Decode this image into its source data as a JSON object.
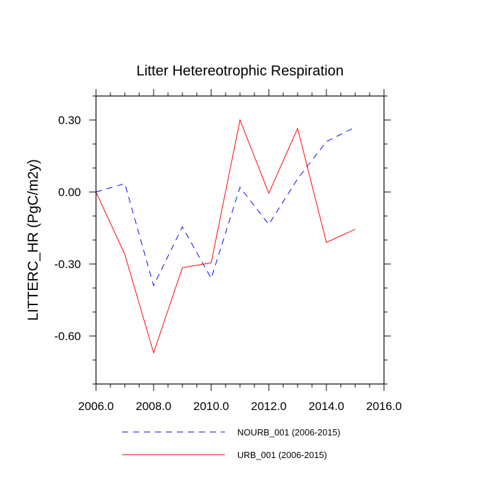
{
  "chart_data": {
    "type": "line",
    "title": "Litter Hetereotrophic Respiration",
    "xlabel": "",
    "ylabel": "LITTERC_HR  (PgC/m2y)",
    "xlim": [
      2006,
      2016
    ],
    "ylim": [
      -0.8,
      0.4
    ],
    "x_ticks": [
      2006,
      2008,
      2010,
      2012,
      2014,
      2016
    ],
    "x_tick_labels": [
      "2006.0",
      "2008.0",
      "2010.0",
      "2012.0",
      "2014.0",
      "2016.0"
    ],
    "y_ticks": [
      0.3,
      0.0,
      -0.3,
      -0.6
    ],
    "y_tick_labels": [
      "0.30",
      "0.00",
      "-0.30",
      "-0.60"
    ],
    "grid": false,
    "legend_position": "bottom",
    "x": [
      2006,
      2007,
      2008,
      2009,
      2010,
      2011,
      2012,
      2013,
      2014,
      2015
    ],
    "series": [
      {
        "name": "NOURB_001 (2006-2015)",
        "color": "#0000ff",
        "style": "dashed",
        "values": [
          0.0,
          0.035,
          -0.39,
          -0.145,
          -0.36,
          0.02,
          -0.135,
          0.055,
          0.21,
          0.27
        ]
      },
      {
        "name": "URB_001 (2006-2015)",
        "color": "#ff0000",
        "style": "solid",
        "values": [
          0.0,
          -0.26,
          -0.67,
          -0.315,
          -0.295,
          0.3,
          -0.005,
          0.265,
          -0.21,
          -0.155
        ]
      }
    ]
  }
}
